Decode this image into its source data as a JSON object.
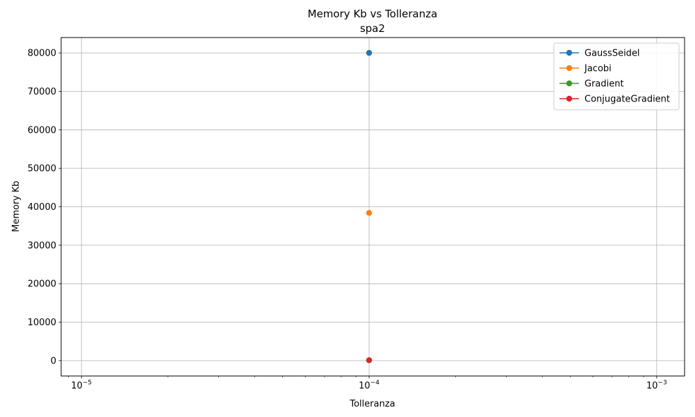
{
  "chart_data": {
    "type": "line",
    "title": "Memory Kb vs Tolleranza",
    "subtitle": "spa2",
    "xlabel": "Tolleranza",
    "ylabel": "Memory Kb",
    "xscale": "log",
    "xlim": [
      8.5e-06,
      0.00125
    ],
    "ylim": [
      -4000,
      84000
    ],
    "x_major_ticks": [
      1e-05,
      0.0001,
      0.001
    ],
    "x_major_tick_labels": [
      "10",
      "10",
      "10"
    ],
    "x_major_tick_exponents": [
      "−5",
      "−4",
      "−3"
    ],
    "y_ticks": [
      0,
      10000,
      20000,
      30000,
      40000,
      50000,
      60000,
      70000,
      80000
    ],
    "y_tick_labels": [
      "0",
      "10000",
      "20000",
      "30000",
      "40000",
      "50000",
      "60000",
      "70000",
      "80000"
    ],
    "grid": true,
    "legend_position": "top-right",
    "series": [
      {
        "name": "GaussSeidel",
        "color": "#1f77b4",
        "x": [
          0.0001
        ],
        "y": [
          80000
        ]
      },
      {
        "name": "Jacobi",
        "color": "#ff7f0e",
        "x": [
          0.0001
        ],
        "y": [
          38400
        ]
      },
      {
        "name": "Gradient",
        "color": "#2ca02c",
        "x": [
          0.0001
        ],
        "y": [
          100
        ]
      },
      {
        "name": "ConjugateGradient",
        "color": "#d62728",
        "x": [
          0.0001
        ],
        "y": [
          100
        ]
      }
    ]
  }
}
